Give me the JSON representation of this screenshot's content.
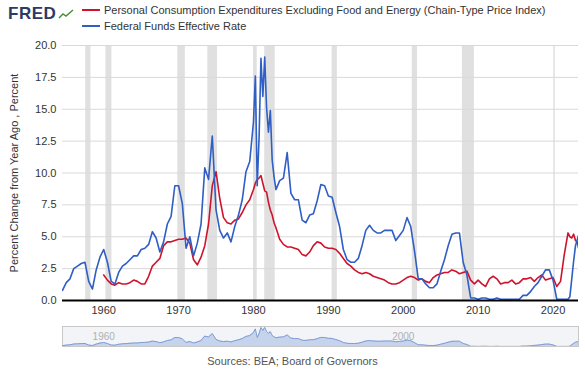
{
  "chart_data": {
    "type": "line",
    "logo": "FRED",
    "legend": "top-left",
    "ylabel": "Percent Change from Year Ago , Percent",
    "caption": "Sources: BEA; Board of Governors",
    "grid": true,
    "xlim": [
      1954.5,
      2023.4
    ],
    "xticks": [
      1960,
      1970,
      1980,
      1990,
      2000,
      2010,
      2020
    ],
    "ylim": [
      0,
      20
    ],
    "yticks": [
      {
        "value": 0,
        "label": "0.0"
      },
      2.5,
      {
        "value": 5,
        "label": "5.0"
      },
      7.5,
      {
        "value": 10,
        "label": "10.0"
      },
      12.5,
      {
        "value": 15,
        "label": "15.0"
      },
      17.5,
      {
        "value": 20,
        "label": "20.0"
      }
    ],
    "recessions": [
      [
        1957.6,
        1958.3
      ],
      [
        1960.3,
        1961.1
      ],
      [
        1969.9,
        1970.9
      ],
      [
        1973.9,
        1975.2
      ],
      [
        1980.0,
        1980.5
      ],
      [
        1981.5,
        1982.9
      ],
      [
        1990.5,
        1991.2
      ],
      [
        2001.2,
        2001.9
      ],
      [
        2007.9,
        2009.5
      ],
      [
        2020.1,
        2020.3
      ]
    ],
    "navigator": {
      "xticks": [
        1960,
        2000
      ],
      "series": "Federal Funds Effective Rate"
    },
    "x": [
      1954.5,
      1955,
      1955.5,
      1956,
      1956.5,
      1957,
      1957.5,
      1958,
      1958.5,
      1959,
      1959.5,
      1960,
      1960.5,
      1961,
      1961.5,
      1962,
      1962.5,
      1963,
      1963.5,
      1964,
      1964.5,
      1965,
      1965.5,
      1966,
      1966.5,
      1967,
      1967.5,
      1968,
      1968.5,
      1969,
      1969.5,
      1970,
      1970.5,
      1971,
      1971.5,
      1972,
      1972.5,
      1973,
      1973.5,
      1974,
      1974.5,
      1975,
      1975.5,
      1976,
      1976.5,
      1977,
      1977.5,
      1978,
      1978.5,
      1979,
      1979.5,
      1980,
      1980.25,
      1980.5,
      1980.75,
      1981,
      1981.25,
      1981.5,
      1981.75,
      1982,
      1982.25,
      1982.5,
      1982.75,
      1983,
      1983.5,
      1984,
      1984.5,
      1985,
      1985.5,
      1986,
      1986.5,
      1987,
      1987.5,
      1988,
      1988.5,
      1989,
      1989.5,
      1990,
      1990.5,
      1991,
      1991.5,
      1992,
      1992.5,
      1993,
      1993.5,
      1994,
      1994.5,
      1995,
      1995.5,
      1996,
      1996.5,
      1997,
      1997.5,
      1998,
      1998.5,
      1999,
      1999.5,
      2000,
      2000.5,
      2001,
      2001.5,
      2002,
      2002.5,
      2003,
      2003.5,
      2004,
      2004.5,
      2005,
      2005.5,
      2006,
      2006.5,
      2007,
      2007.5,
      2008,
      2008.5,
      2009,
      2009.5,
      2010,
      2010.5,
      2011,
      2011.5,
      2012,
      2012.5,
      2013,
      2013.5,
      2014,
      2014.5,
      2015,
      2015.5,
      2016,
      2016.5,
      2017,
      2017.5,
      2018,
      2018.5,
      2019,
      2019.5,
      2020,
      2020.5,
      2021,
      2021.5,
      2022,
      2022.25,
      2022.5,
      2022.75,
      2023,
      2023.25,
      2023.4
    ],
    "series": [
      {
        "name": "Personal Consumption Expenditures Excluding Food and Energy (Chain-Type Price Index)",
        "color": "#d0132c",
        "line_style": "solid",
        "values": [
          null,
          null,
          null,
          null,
          null,
          null,
          null,
          null,
          null,
          null,
          null,
          2.0,
          1.6,
          1.3,
          1.2,
          1.4,
          1.3,
          1.3,
          1.4,
          1.6,
          1.5,
          1.3,
          1.3,
          1.9,
          2.7,
          3.0,
          3.3,
          4.3,
          4.6,
          4.6,
          4.7,
          4.8,
          4.8,
          4.9,
          4.5,
          3.2,
          2.8,
          3.4,
          4.3,
          6.0,
          9.0,
          10.1,
          8.0,
          6.5,
          6.1,
          6.0,
          6.3,
          6.4,
          6.9,
          7.5,
          7.9,
          8.7,
          9.2,
          9.5,
          9.6,
          9.8,
          9.2,
          8.6,
          8.5,
          7.7,
          7.1,
          6.7,
          6.1,
          5.7,
          4.8,
          4.4,
          4.2,
          4.2,
          4.1,
          4.0,
          3.6,
          3.5,
          3.8,
          4.3,
          4.6,
          4.5,
          4.2,
          4.1,
          4.1,
          4.0,
          3.7,
          3.3,
          2.9,
          2.7,
          2.4,
          2.2,
          2.1,
          2.2,
          2.1,
          1.9,
          1.8,
          1.7,
          1.6,
          1.4,
          1.3,
          1.3,
          1.4,
          1.6,
          1.8,
          1.9,
          1.8,
          1.6,
          1.7,
          1.5,
          1.4,
          1.8,
          2.0,
          2.1,
          2.2,
          2.2,
          2.4,
          2.3,
          2.1,
          2.2,
          2.3,
          1.6,
          1.3,
          1.6,
          1.3,
          1.1,
          1.7,
          1.9,
          1.7,
          1.3,
          1.4,
          1.4,
          1.6,
          1.3,
          1.4,
          1.7,
          1.7,
          1.8,
          1.5,
          1.8,
          2.0,
          1.6,
          1.7,
          1.8,
          1.1,
          1.5,
          3.6,
          5.3,
          5.0,
          4.9,
          5.2,
          4.7,
          4.6,
          4.1
        ]
      },
      {
        "name": "Federal Funds Effective Rate",
        "color": "#2f5ec4",
        "line_style": "solid",
        "values": [
          0.8,
          1.4,
          1.7,
          2.5,
          2.7,
          2.9,
          3.0,
          1.5,
          0.9,
          2.4,
          3.4,
          4.0,
          3.0,
          1.5,
          1.3,
          2.2,
          2.7,
          2.9,
          3.2,
          3.5,
          3.5,
          4.0,
          4.1,
          4.4,
          5.4,
          4.9,
          3.8,
          4.6,
          6.0,
          6.6,
          9.0,
          9.0,
          7.6,
          4.1,
          5.0,
          3.5,
          4.5,
          6.0,
          10.4,
          9.5,
          12.9,
          7.1,
          5.5,
          4.9,
          5.3,
          4.6,
          5.8,
          6.7,
          7.9,
          10.1,
          10.9,
          14.0,
          17.6,
          9.0,
          12.8,
          19.0,
          16.0,
          19.1,
          15.1,
          13.2,
          14.9,
          11.0,
          9.7,
          8.7,
          9.4,
          9.6,
          11.6,
          8.4,
          7.9,
          7.9,
          6.3,
          6.1,
          6.7,
          6.8,
          7.8,
          9.1,
          9.0,
          8.2,
          8.1,
          6.9,
          5.8,
          4.0,
          3.2,
          3.0,
          3.0,
          3.3,
          4.3,
          5.5,
          5.9,
          5.5,
          5.3,
          5.3,
          5.5,
          5.5,
          5.5,
          4.7,
          5.1,
          5.5,
          6.5,
          5.8,
          3.9,
          1.7,
          1.7,
          1.3,
          1.0,
          1.0,
          1.3,
          2.3,
          3.2,
          4.3,
          5.2,
          5.3,
          5.3,
          3.0,
          2.0,
          0.2,
          0.2,
          0.1,
          0.2,
          0.2,
          0.1,
          0.1,
          0.2,
          0.1,
          0.1,
          0.1,
          0.1,
          0.1,
          0.1,
          0.4,
          0.4,
          0.7,
          1.1,
          1.4,
          1.9,
          2.4,
          2.4,
          1.6,
          0.1,
          0.1,
          0.1,
          0.1,
          0.3,
          1.7,
          3.1,
          4.3,
          4.8,
          5.1
        ]
      }
    ]
  }
}
